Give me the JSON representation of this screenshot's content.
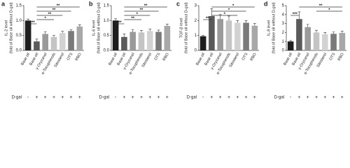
{
  "chart_data": [
    {
      "type": "bar",
      "panel_label": "a",
      "ylabel": [
        "IL-2  level",
        "(fold of Base oil without D-gal)"
      ],
      "categories": [
        "Base oil",
        "Base oil",
        "γ-Oryzanol",
        "α-Tocopherols",
        "Sitosterol",
        "OTS",
        "RBO"
      ],
      "values": [
        1.0,
        0.3,
        0.55,
        0.45,
        0.58,
        0.65,
        0.8
      ],
      "errors": [
        0.05,
        0.08,
        0.08,
        0.06,
        0.06,
        0.05,
        0.06
      ],
      "colors": [
        "#1e1e1e",
        "#5a5a5a",
        "#9a9a9a",
        "#c4c4c4",
        "#d2d2d2",
        "#7a7a7a",
        "#a8a8a8"
      ],
      "ylim": [
        0,
        1.5
      ],
      "yticks": [
        {
          "value": 0,
          "label": "0.0"
        },
        0.5,
        {
          "value": 1,
          "label": "1.0"
        },
        1.5
      ],
      "row_label": "D-gal",
      "row_values": [
        "-",
        "+",
        "+",
        "+",
        "+",
        "+",
        "+"
      ],
      "annotations": [
        {
          "text": "**",
          "from": 1,
          "to": 6
        },
        {
          "text": "**",
          "from": 1,
          "to": 5
        },
        {
          "text": "**",
          "from": 1,
          "to": 4
        },
        {
          "text": "*",
          "from": 1,
          "to": 3
        },
        {
          "text": "***",
          "from": 0,
          "to": 1
        }
      ]
    },
    {
      "type": "bar",
      "panel_label": "b",
      "ylabel": [
        "IL-6  level",
        "(fold of Base oil without D-gal)"
      ],
      "categories": [
        "Base oil",
        "Base oil",
        "γ-Oryzanol",
        "α-Tocopherols",
        "Sitosterol",
        "OTS",
        "RBO"
      ],
      "values": [
        1.0,
        0.45,
        0.62,
        0.6,
        0.65,
        0.62,
        0.82
      ],
      "errors": [
        0.06,
        0.1,
        0.08,
        0.07,
        0.06,
        0.06,
        0.06
      ],
      "colors": [
        "#1e1e1e",
        "#5a5a5a",
        "#9a9a9a",
        "#c4c4c4",
        "#d2d2d2",
        "#7a7a7a",
        "#a8a8a8"
      ],
      "ylim": [
        0,
        1.5
      ],
      "yticks": [
        {
          "value": 0,
          "label": "0.0"
        },
        0.5,
        {
          "value": 1,
          "label": "1.0"
        },
        1.5
      ],
      "row_label": "D-gal",
      "row_values": [
        "-",
        "+",
        "+",
        "+",
        "+",
        "+",
        "+"
      ],
      "annotations": [
        {
          "text": "**",
          "from": 1,
          "to": 6
        },
        {
          "text": "**",
          "from": 1,
          "to": 5
        },
        {
          "text": "*",
          "from": 1,
          "to": 4
        },
        {
          "text": "**",
          "from": 1,
          "to": 3
        },
        {
          "text": "**",
          "from": 0,
          "to": 1
        }
      ]
    },
    {
      "type": "bar",
      "panel_label": "c",
      "ylabel": [
        "TGF-β  level",
        "(fold of Base oil without D-gal)"
      ],
      "categories": [
        "Base oil",
        "Base oil",
        "γ-Oryzanol",
        "α-Tocopherols",
        "Sitosterol",
        "OTS",
        "RBO"
      ],
      "values": [
        0.95,
        2.3,
        2.1,
        2.0,
        1.85,
        1.85,
        1.65
      ],
      "errors": [
        0.05,
        0.5,
        0.3,
        0.3,
        0.15,
        0.15,
        0.15
      ],
      "colors": [
        "#1e1e1e",
        "#5a5a5a",
        "#9a9a9a",
        "#c4c4c4",
        "#d2d2d2",
        "#7a7a7a",
        "#a8a8a8"
      ],
      "ylim": [
        0,
        3
      ],
      "yticks": [
        0,
        1,
        2,
        3
      ],
      "row_label": "D-gal",
      "row_values": [
        "-",
        "+",
        "+",
        "+",
        "+",
        "+",
        "+"
      ],
      "annotations": [
        {
          "text": "*",
          "from": 1,
          "to": 6
        },
        {
          "text": "*",
          "from": 1,
          "to": 5
        },
        {
          "text": "*",
          "from": 1,
          "to": 4
        },
        {
          "text": "**",
          "from": 0,
          "to": 1
        }
      ]
    },
    {
      "type": "bar",
      "panel_label": "d",
      "ylabel": [
        "IL-8  level",
        "(fold of Base oil without D-gal)"
      ],
      "categories": [
        "Base oil",
        "Base oil",
        "γ-Oryzanol",
        "α-Tocopherols",
        "Sitosterol",
        "OTS",
        "RBO"
      ],
      "values": [
        1.0,
        3.5,
        2.6,
        2.0,
        1.8,
        1.85,
        1.95
      ],
      "errors": [
        0.1,
        0.8,
        0.3,
        0.25,
        0.2,
        0.2,
        0.2
      ],
      "colors": [
        "#1e1e1e",
        "#5a5a5a",
        "#9a9a9a",
        "#c4c4c4",
        "#d2d2d2",
        "#7a7a7a",
        "#a8a8a8"
      ],
      "ylim": [
        0,
        5
      ],
      "yticks": [
        0,
        1,
        2,
        3,
        4,
        5
      ],
      "row_label": "D-gal",
      "row_values": [
        "-",
        "+",
        "+",
        "+",
        "+",
        "+",
        "+"
      ],
      "annotations": [
        {
          "text": "**",
          "from": 1,
          "to": 6
        },
        {
          "text": "*",
          "from": 3,
          "to": 6
        },
        {
          "text": "***",
          "from": 0,
          "to": 1
        }
      ]
    }
  ]
}
